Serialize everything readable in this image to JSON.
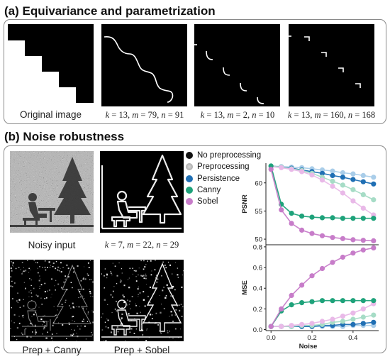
{
  "section_a": {
    "title": "(a) Equivariance and parametrization",
    "captions": [
      {
        "kind": "text",
        "text": "Original image"
      },
      {
        "kind": "params",
        "k": "13",
        "m": "79",
        "n": "91"
      },
      {
        "kind": "params",
        "k": "13",
        "m": "2",
        "n": "10"
      },
      {
        "kind": "params",
        "k": "13",
        "m": "160",
        "n": "168"
      }
    ]
  },
  "section_b": {
    "title": "(b) Noise robustness",
    "captions": [
      {
        "kind": "text",
        "text": "Noisy input"
      },
      {
        "kind": "params",
        "k": "7",
        "m": "22",
        "n": "29"
      },
      {
        "kind": "text",
        "text": "Prep + Canny"
      },
      {
        "kind": "text",
        "text": "Prep + Sobel"
      }
    ],
    "legend": [
      {
        "label": "No preprocessing",
        "color": "#111111"
      },
      {
        "label": "Preprocessing",
        "color": "#9a9a9a"
      },
      {
        "label": "Persistence",
        "color": "#1f6fb4"
      },
      {
        "label": "Canny",
        "color": "#1ea27a"
      },
      {
        "label": "Sobel",
        "color": "#c77cc9"
      }
    ]
  },
  "chart_data": [
    {
      "type": "line",
      "ylabel": "PSNR",
      "xlabel": "",
      "ylim": [
        49,
        63.5
      ],
      "yticks": [
        50,
        55,
        60
      ],
      "x": [
        0.0,
        0.05,
        0.1,
        0.15,
        0.2,
        0.25,
        0.3,
        0.35,
        0.4,
        0.45,
        0.5
      ],
      "series": [
        {
          "name": "Persistence",
          "variant": "Preprocessing",
          "color": "#a9cde9",
          "values": [
            63.0,
            62.9,
            62.8,
            62.7,
            62.5,
            62.3,
            62.1,
            61.8,
            61.6,
            61.3,
            61.0
          ]
        },
        {
          "name": "Persistence",
          "variant": "No preprocessing",
          "color": "#1f6fb4",
          "values": [
            63.0,
            62.8,
            62.6,
            62.3,
            62.0,
            61.7,
            61.3,
            61.0,
            60.6,
            60.2,
            59.8
          ]
        },
        {
          "name": "Canny",
          "variant": "Preprocessing",
          "color": "#a6dcc6",
          "values": [
            63.0,
            62.8,
            62.5,
            62.2,
            61.7,
            61.0,
            60.3,
            59.6,
            58.8,
            57.9,
            57.0
          ]
        },
        {
          "name": "Sobel",
          "variant": "Preprocessing",
          "color": "#e9b9e8",
          "values": [
            62.9,
            62.7,
            62.4,
            62.0,
            61.4,
            60.5,
            59.4,
            58.2,
            56.8,
            55.5,
            54.3
          ]
        },
        {
          "name": "Canny",
          "variant": "No preprocessing",
          "color": "#1ea27a",
          "values": [
            63.0,
            56.2,
            54.6,
            54.1,
            53.9,
            53.8,
            53.8,
            53.7,
            53.7,
            53.7,
            53.7
          ]
        },
        {
          "name": "Sobel",
          "variant": "No preprocessing",
          "color": "#c77cc9",
          "values": [
            62.4,
            55.2,
            52.8,
            51.6,
            51.0,
            50.6,
            50.3,
            50.1,
            49.9,
            49.8,
            49.7
          ]
        }
      ]
    },
    {
      "type": "line",
      "ylabel": "MSE",
      "xlabel": "Noise",
      "ylim": [
        -0.01,
        0.82
      ],
      "yticks": [
        0.0,
        0.2,
        0.4,
        0.6,
        0.8
      ],
      "xticks": [
        0.0,
        0.2,
        0.4
      ],
      "x": [
        0.0,
        0.05,
        0.1,
        0.15,
        0.2,
        0.25,
        0.3,
        0.35,
        0.4,
        0.45,
        0.5
      ],
      "series": [
        {
          "name": "Persistence",
          "variant": "Preprocessing",
          "color": "#a9cde9",
          "values": [
            0.03,
            0.03,
            0.03,
            0.03,
            0.03,
            0.03,
            0.03,
            0.03,
            0.04,
            0.04,
            0.04
          ]
        },
        {
          "name": "Persistence",
          "variant": "No preprocessing",
          "color": "#1f6fb4",
          "values": [
            0.03,
            0.03,
            0.03,
            0.03,
            0.03,
            0.04,
            0.04,
            0.05,
            0.05,
            0.06,
            0.07
          ]
        },
        {
          "name": "Canny",
          "variant": "Preprocessing",
          "color": "#a6dcc6",
          "values": [
            0.03,
            0.03,
            0.03,
            0.04,
            0.04,
            0.05,
            0.07,
            0.08,
            0.1,
            0.12,
            0.14
          ]
        },
        {
          "name": "Sobel",
          "variant": "Preprocessing",
          "color": "#e9b9e8",
          "values": [
            0.03,
            0.03,
            0.04,
            0.05,
            0.06,
            0.08,
            0.1,
            0.13,
            0.16,
            0.2,
            0.25
          ]
        },
        {
          "name": "Canny",
          "variant": "No preprocessing",
          "color": "#1ea27a",
          "values": [
            0.03,
            0.18,
            0.24,
            0.26,
            0.27,
            0.28,
            0.28,
            0.28,
            0.28,
            0.28,
            0.28
          ]
        },
        {
          "name": "Sobel",
          "variant": "No preprocessing",
          "color": "#c77cc9",
          "values": [
            0.03,
            0.2,
            0.33,
            0.43,
            0.52,
            0.59,
            0.65,
            0.7,
            0.74,
            0.77,
            0.79
          ]
        }
      ]
    }
  ]
}
